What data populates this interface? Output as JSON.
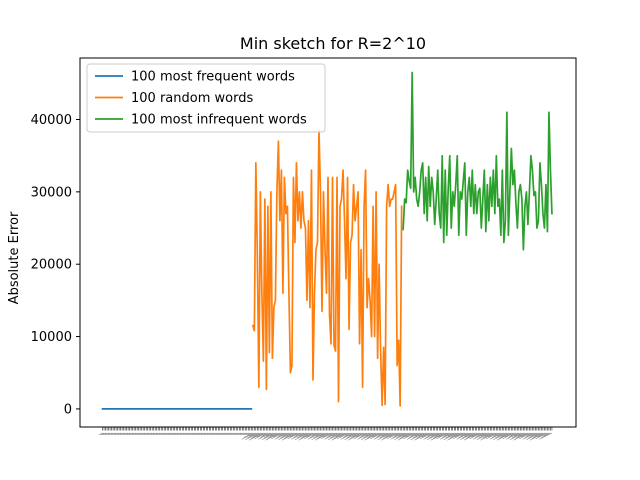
{
  "chart_data": {
    "type": "line",
    "title": "Min sketch for R=2^10",
    "xlabel": "",
    "ylabel": "Absolute Error",
    "ylim": [
      -2500,
      48500
    ],
    "yticks": [
      0,
      10000,
      20000,
      30000,
      40000
    ],
    "ytick_labels": [
      "0",
      "10000",
      "20000",
      "30000",
      "40000"
    ],
    "x_tick_labels_note_hidden": true,
    "legend_position": "upper-left",
    "grid": false,
    "series": [
      {
        "name": "100 most frequent words",
        "color": "#1f77b4",
        "x_start": 0,
        "values": [
          0,
          0,
          0,
          0,
          0,
          0,
          0,
          0,
          0,
          0,
          0,
          0,
          0,
          0,
          0,
          0,
          0,
          0,
          0,
          0,
          0,
          0,
          0,
          0,
          0,
          0,
          0,
          0,
          0,
          0,
          0,
          0,
          0,
          0,
          0,
          0,
          0,
          0,
          0,
          0,
          0,
          0,
          0,
          0,
          0,
          0,
          0,
          0,
          0,
          0,
          0,
          0,
          0,
          0,
          0,
          0,
          0,
          0,
          0,
          0,
          0,
          0,
          0,
          0,
          0,
          0,
          0,
          0,
          0,
          0,
          0,
          0,
          0,
          0,
          0,
          0,
          0,
          0,
          0,
          0,
          0,
          0,
          0,
          0,
          0,
          0,
          0,
          0,
          0,
          0,
          0,
          0,
          0,
          0,
          0,
          0,
          0,
          0,
          0,
          0
        ]
      },
      {
        "name": "100 random words",
        "color": "#ff7f0e",
        "x_start": 100,
        "values": [
          11500,
          10800,
          34000,
          21000,
          3000,
          30000,
          16000,
          6600,
          29000,
          2700,
          28000,
          7800,
          30000,
          7000,
          14000,
          15000,
          30000,
          37000,
          26000,
          33000,
          16000,
          32000,
          27000,
          28000,
          16000,
          5000,
          6000,
          32000,
          23000,
          34000,
          26000,
          30000,
          25000,
          30000,
          26000,
          25000,
          15000,
          26000,
          14000,
          33000,
          4000,
          16000,
          22000,
          23000,
          38500,
          30000,
          13500,
          30000,
          22000,
          16000,
          32000,
          13000,
          9000,
          32000,
          8800,
          8000,
          32000,
          1000,
          28000,
          29000,
          33000,
          26000,
          18000,
          32000,
          11000,
          23000,
          24000,
          31000,
          26000,
          28000,
          30000,
          9000,
          22000,
          3000,
          28000,
          33000,
          14000,
          18000,
          15000,
          10000,
          28000,
          10000,
          30000,
          7000,
          20000,
          8000,
          500,
          8500,
          600,
          28000,
          31000,
          28000,
          29000,
          29000,
          30000,
          31000,
          6000,
          9500,
          400,
          28000
        ]
      },
      {
        "name": "100 most infrequent words",
        "color": "#2ca02c",
        "x_start": 200,
        "values": [
          24800,
          29000,
          28500,
          33000,
          31500,
          30500,
          46500,
          30000,
          32000,
          29000,
          28000,
          30000,
          33000,
          34000,
          27000,
          32000,
          26000,
          33500,
          28000,
          32000,
          30000,
          25500,
          29000,
          33000,
          27000,
          25000,
          35000,
          23000,
          33000,
          24000,
          30500,
          35000,
          25000,
          30000,
          28000,
          31000,
          35000,
          24000,
          30000,
          29000,
          31500,
          34000,
          24000,
          30000,
          32000,
          28000,
          33000,
          27000,
          31000,
          27000,
          30000,
          30500,
          25000,
          29000,
          33000,
          24500,
          31000,
          26000,
          32000,
          28000,
          33000,
          27000,
          35000,
          28000,
          29000,
          24000,
          33000,
          23000,
          26000,
          41000,
          24000,
          30000,
          36000,
          31000,
          33000,
          28500,
          25000,
          30000,
          31000,
          29000,
          22000,
          28000,
          30000,
          25500,
          30000,
          35000,
          33000,
          29500,
          30000,
          25000,
          26000,
          34000,
          31000,
          27000,
          25000,
          31000,
          24500,
          41000,
          33000,
          27000
        ]
      }
    ]
  }
}
